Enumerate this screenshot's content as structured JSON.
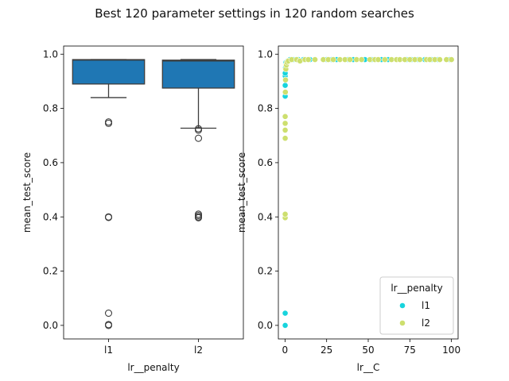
{
  "title": "Best 120 parameter settings in 120 random searches",
  "chart_data": [
    {
      "type": "box",
      "xlabel": "lr__penalty",
      "ylabel": "mean_test_score",
      "ylim": [
        -0.05,
        1.03
      ],
      "yticks": [
        "0.0",
        "0.2",
        "0.4",
        "0.6",
        "0.8",
        "1.0"
      ],
      "categories": [
        "l1",
        "l2"
      ],
      "box_color": "#1f77b4",
      "boxes": [
        {
          "category": "l1",
          "q1": 0.89,
          "median": 0.978,
          "q3": 0.98,
          "whisker_low": 0.84,
          "whisker_high": 0.98,
          "outliers": [
            0.75,
            0.745,
            0.4,
            0.398,
            0.045,
            0.003,
            0.0
          ]
        },
        {
          "category": "l2",
          "q1": 0.875,
          "median": 0.975,
          "q3": 0.978,
          "whisker_low": 0.727,
          "whisker_high": 0.98,
          "outliers": [
            0.725,
            0.72,
            0.69,
            0.41,
            0.405,
            0.4,
            0.397
          ]
        }
      ]
    },
    {
      "type": "scatter",
      "xlabel": "lr__C",
      "ylabel": "mean_test_score",
      "xlim": [
        -4,
        104
      ],
      "ylim": [
        -0.05,
        1.03
      ],
      "xticks": [
        "0",
        "25",
        "50",
        "75",
        "100"
      ],
      "yticks": [
        "0.0",
        "0.2",
        "0.4",
        "0.6",
        "0.8",
        "1.0"
      ],
      "legend": {
        "title": "lr__penalty",
        "position": "bottom-right"
      },
      "series": [
        {
          "name": "l1",
          "color": "#17d4dd",
          "points": [
            [
              0.1,
              0.0
            ],
            [
              0.1,
              0.045
            ],
            [
              0.1,
              0.845
            ],
            [
              0.1,
              0.885
            ],
            [
              0.1,
              0.92
            ],
            [
              0.1,
              0.93
            ],
            [
              0.3,
              0.95
            ],
            [
              0.6,
              0.97
            ],
            [
              1.5,
              0.975
            ],
            [
              3,
              0.98
            ],
            [
              5,
              0.98
            ],
            [
              8,
              0.98
            ],
            [
              11,
              0.98
            ],
            [
              15,
              0.98
            ],
            [
              25,
              0.98
            ],
            [
              28,
              0.98
            ],
            [
              31,
              0.98
            ],
            [
              38,
              0.98
            ],
            [
              41,
              0.98
            ],
            [
              48,
              0.98
            ],
            [
              52,
              0.98
            ],
            [
              58,
              0.98
            ],
            [
              62,
              0.98
            ],
            [
              73,
              0.98
            ],
            [
              76,
              0.98
            ],
            [
              80,
              0.98
            ],
            [
              84,
              0.98
            ],
            [
              88,
              0.98
            ],
            [
              92,
              0.98
            ],
            [
              99,
              0.98
            ]
          ]
        },
        {
          "name": "l2",
          "color": "#cddf6e",
          "points": [
            [
              0.1,
              0.397
            ],
            [
              0.1,
              0.41
            ],
            [
              0.1,
              0.69
            ],
            [
              0.1,
              0.72
            ],
            [
              0.1,
              0.745
            ],
            [
              0.1,
              0.77
            ],
            [
              0.2,
              0.86
            ],
            [
              0.3,
              0.905
            ],
            [
              0.5,
              0.945
            ],
            [
              0.8,
              0.96
            ],
            [
              1.2,
              0.97
            ],
            [
              2,
              0.975
            ],
            [
              4,
              0.98
            ],
            [
              7,
              0.98
            ],
            [
              9,
              0.975
            ],
            [
              12,
              0.98
            ],
            [
              14,
              0.98
            ],
            [
              18,
              0.98
            ],
            [
              23,
              0.98
            ],
            [
              26,
              0.98
            ],
            [
              29,
              0.98
            ],
            [
              33,
              0.98
            ],
            [
              36,
              0.98
            ],
            [
              39,
              0.98
            ],
            [
              43,
              0.98
            ],
            [
              46,
              0.98
            ],
            [
              51,
              0.98
            ],
            [
              54,
              0.98
            ],
            [
              56,
              0.98
            ],
            [
              60,
              0.98
            ],
            [
              64,
              0.98
            ],
            [
              67,
              0.98
            ],
            [
              69,
              0.98
            ],
            [
              72,
              0.98
            ],
            [
              75,
              0.98
            ],
            [
              78,
              0.98
            ],
            [
              81,
              0.98
            ],
            [
              85,
              0.98
            ],
            [
              87,
              0.98
            ],
            [
              90,
              0.98
            ],
            [
              93,
              0.98
            ],
            [
              97,
              0.98
            ],
            [
              100,
              0.98
            ]
          ]
        }
      ]
    }
  ]
}
